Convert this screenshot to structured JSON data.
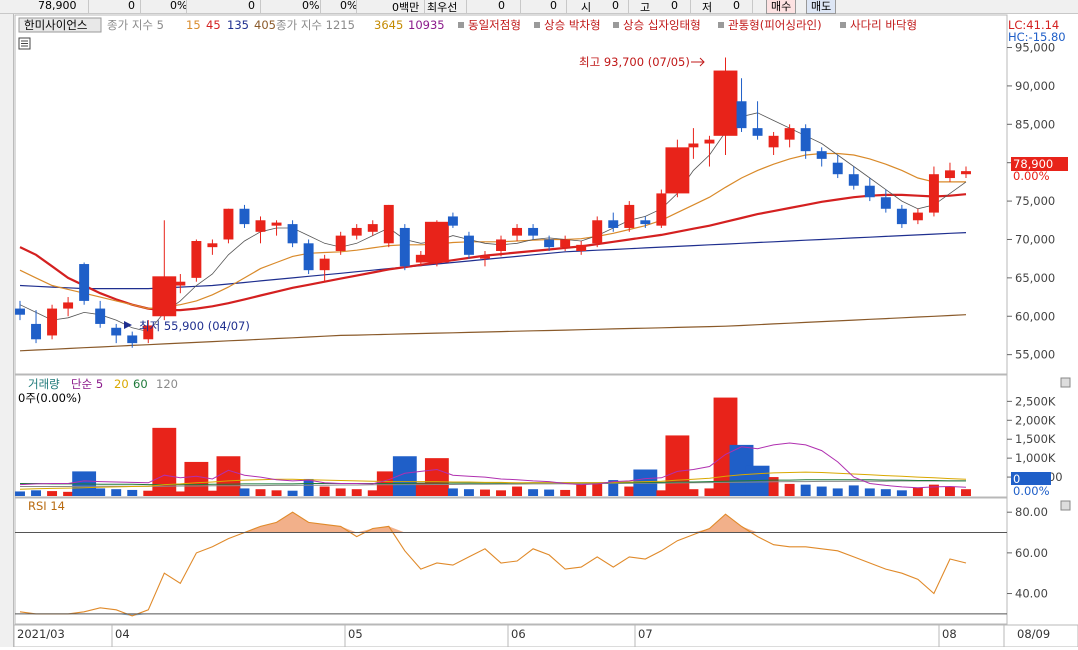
{
  "topbar": {
    "price": "78,900",
    "fields": [
      "0",
      "0%",
      "0",
      "0%",
      "0%",
      "0백만",
      "최우선",
      "0",
      "0",
      "시",
      "0",
      "고",
      "0",
      "저",
      "0"
    ],
    "buy_label": "매수",
    "sell_label": "매도"
  },
  "price_panel": {
    "stock_name": "한미사이언스",
    "ma_label": "종가 지수 5",
    "ma_short": [
      "15",
      "45",
      "135",
      "405"
    ],
    "ma_long_label": "종가 지수 1215",
    "ma_long": [
      "3645",
      "10935"
    ],
    "patterns": [
      "동일저점형",
      "상승 박차형",
      "상승 십자잉태형",
      "관통형(피어싱라인)",
      "사다리 바닥형"
    ],
    "lc": "LC:41.14",
    "hc": "HC:-15.80",
    "high_annotation": "최고 93,700 (07/05)",
    "low_annotation": "최저 55,900 (04/07)",
    "current_price": "78,900",
    "current_change": "0.00%",
    "y_ticks": [
      "95,000",
      "90,000",
      "85,000",
      "80,000",
      "75,000",
      "70,000",
      "65,000",
      "60,000",
      "55,000"
    ]
  },
  "volume_panel": {
    "title": "거래량",
    "ma_label": "단순 5",
    "ma_periods": [
      "20",
      "60",
      "120"
    ],
    "value_label": "0주(0.00%)",
    "y_ticks": [
      "2,500K",
      "2,000K",
      "1,500K",
      "1,000K",
      "500,000"
    ],
    "current_value": "0",
    "current_pct": "0.00%"
  },
  "rsi_panel": {
    "title": "RSI 14",
    "y_ticks": [
      "80.00",
      "60.00",
      "40.00"
    ]
  },
  "x_axis": {
    "labels": [
      "2021/03",
      "04",
      "05",
      "06",
      "07",
      "08",
      "08/09"
    ]
  },
  "colors": {
    "up": "#e8231a",
    "down": "#1f5fc8",
    "ma5": "#555555",
    "ma20": "#d98a2a",
    "ma60": "#d42020",
    "ma120": "#1f2f8f",
    "ma240": "#8a5a2a",
    "rsi": "#e08a2a"
  },
  "chart_data": {
    "type": "candlestick",
    "x_range": [
      "2021/03",
      "08/09"
    ],
    "price_ylim": [
      53000,
      96500
    ],
    "volume_ylim": [
      0,
      2800
    ],
    "volume_unit": "K",
    "rsi_ylim": [
      26,
      86
    ],
    "candles": [
      {
        "o": 61000,
        "h": 62000,
        "l": 59500,
        "c": 60200
      },
      {
        "o": 59000,
        "h": 60800,
        "l": 56500,
        "c": 57000
      },
      {
        "o": 57500,
        "h": 61500,
        "l": 57000,
        "c": 61000
      },
      {
        "o": 61000,
        "h": 62500,
        "l": 60000,
        "c": 61800
      },
      {
        "o": 66800,
        "h": 67000,
        "l": 61500,
        "c": 62000
      },
      {
        "o": 61000,
        "h": 62000,
        "l": 58500,
        "c": 59000
      },
      {
        "o": 58500,
        "h": 59000,
        "l": 56500,
        "c": 57500
      },
      {
        "o": 57500,
        "h": 58000,
        "l": 55900,
        "c": 56500
      },
      {
        "o": 57000,
        "h": 59500,
        "l": 56500,
        "c": 58800
      },
      {
        "o": 60000,
        "h": 72500,
        "l": 59500,
        "c": 65200
      },
      {
        "o": 64000,
        "h": 65500,
        "l": 63000,
        "c": 64500
      },
      {
        "o": 65000,
        "h": 70000,
        "l": 64500,
        "c": 69800
      },
      {
        "o": 69000,
        "h": 70000,
        "l": 68000,
        "c": 69500
      },
      {
        "o": 70000,
        "h": 74000,
        "l": 69500,
        "c": 74000
      },
      {
        "o": 74000,
        "h": 74500,
        "l": 71500,
        "c": 72000
      },
      {
        "o": 71000,
        "h": 73000,
        "l": 69500,
        "c": 72500
      },
      {
        "o": 71800,
        "h": 72500,
        "l": 70500,
        "c": 72200
      },
      {
        "o": 72000,
        "h": 72500,
        "l": 69000,
        "c": 69500
      },
      {
        "o": 69500,
        "h": 70000,
        "l": 65500,
        "c": 66000
      },
      {
        "o": 66000,
        "h": 68000,
        "l": 64500,
        "c": 67500
      },
      {
        "o": 68500,
        "h": 71000,
        "l": 68000,
        "c": 70500
      },
      {
        "o": 70500,
        "h": 72000,
        "l": 70000,
        "c": 71500
      },
      {
        "o": 71000,
        "h": 72500,
        "l": 70500,
        "c": 72000
      },
      {
        "o": 69500,
        "h": 74500,
        "l": 69000,
        "c": 74500
      },
      {
        "o": 71500,
        "h": 72000,
        "l": 66000,
        "c": 66500
      },
      {
        "o": 67000,
        "h": 68500,
        "l": 66500,
        "c": 68000
      },
      {
        "o": 67000,
        "h": 72500,
        "l": 66500,
        "c": 72300
      },
      {
        "o": 73000,
        "h": 73500,
        "l": 71500,
        "c": 71800
      },
      {
        "o": 70500,
        "h": 71000,
        "l": 67500,
        "c": 68000
      },
      {
        "o": 67500,
        "h": 68500,
        "l": 66500,
        "c": 67800
      },
      {
        "o": 68500,
        "h": 70500,
        "l": 67800,
        "c": 70000
      },
      {
        "o": 70500,
        "h": 72000,
        "l": 69800,
        "c": 71500
      },
      {
        "o": 71500,
        "h": 72000,
        "l": 70000,
        "c": 70500
      },
      {
        "o": 70000,
        "h": 70500,
        "l": 68500,
        "c": 69000
      },
      {
        "o": 69000,
        "h": 70500,
        "l": 68500,
        "c": 70000
      },
      {
        "o": 68500,
        "h": 69800,
        "l": 68000,
        "c": 69300
      },
      {
        "o": 69500,
        "h": 73000,
        "l": 69000,
        "c": 72500
      },
      {
        "o": 72500,
        "h": 73500,
        "l": 71000,
        "c": 71500
      },
      {
        "o": 71500,
        "h": 75000,
        "l": 71000,
        "c": 74500
      },
      {
        "o": 72500,
        "h": 73000,
        "l": 71500,
        "c": 72000
      },
      {
        "o": 71800,
        "h": 76500,
        "l": 71500,
        "c": 76000
      },
      {
        "o": 76000,
        "h": 83000,
        "l": 75500,
        "c": 82000
      },
      {
        "o": 82000,
        "h": 84500,
        "l": 80500,
        "c": 82500
      },
      {
        "o": 82500,
        "h": 83500,
        "l": 79500,
        "c": 83000
      },
      {
        "o": 83500,
        "h": 93700,
        "l": 81000,
        "c": 92000
      },
      {
        "o": 88000,
        "h": 91000,
        "l": 84000,
        "c": 84500
      },
      {
        "o": 84500,
        "h": 88000,
        "l": 83000,
        "c": 83500
      },
      {
        "o": 82000,
        "h": 84000,
        "l": 81000,
        "c": 83500
      },
      {
        "o": 83000,
        "h": 85000,
        "l": 82000,
        "c": 84500
      },
      {
        "o": 84500,
        "h": 85000,
        "l": 80500,
        "c": 81500
      },
      {
        "o": 81500,
        "h": 82000,
        "l": 79500,
        "c": 80500
      },
      {
        "o": 80000,
        "h": 81000,
        "l": 78000,
        "c": 78500
      },
      {
        "o": 78500,
        "h": 79500,
        "l": 76500,
        "c": 77000
      },
      {
        "o": 77000,
        "h": 78000,
        "l": 75000,
        "c": 75500
      },
      {
        "o": 75500,
        "h": 76500,
        "l": 73500,
        "c": 74000
      },
      {
        "o": 74000,
        "h": 74500,
        "l": 71500,
        "c": 72000
      },
      {
        "o": 72500,
        "h": 74000,
        "l": 72000,
        "c": 73500
      },
      {
        "o": 73500,
        "h": 79500,
        "l": 73000,
        "c": 78500
      },
      {
        "o": 78000,
        "h": 80000,
        "l": 77500,
        "c": 79000
      },
      {
        "o": 78500,
        "h": 79500,
        "l": 78000,
        "c": 78900
      }
    ],
    "ma5": [
      61500,
      60500,
      59500,
      59800,
      60500,
      60200,
      59500,
      58500,
      58000,
      60500,
      62000,
      64000,
      65500,
      68000,
      69800,
      71000,
      71500,
      71500,
      70500,
      69500,
      69000,
      69500,
      70500,
      71500,
      70000,
      69500,
      69800,
      70500,
      70000,
      69500,
      69300,
      69500,
      70000,
      70200,
      70000,
      69800,
      70500,
      71500,
      72500,
      73000,
      74000,
      76000,
      79000,
      81000,
      84000,
      86000,
      86500,
      85500,
      84500,
      83500,
      82500,
      81000,
      79500,
      78000,
      76500,
      75000,
      74000,
      74500,
      76000,
      77500
    ],
    "ma20": [
      66000,
      65000,
      64000,
      63500,
      63000,
      62500,
      62000,
      61500,
      61000,
      61200,
      61500,
      62000,
      62800,
      63800,
      65000,
      66200,
      67000,
      67800,
      68200,
      68300,
      68400,
      68600,
      68900,
      69200,
      69300,
      69300,
      69400,
      69600,
      69700,
      69700,
      69700,
      69800,
      69900,
      70000,
      70000,
      70100,
      70400,
      70800,
      71300,
      71800,
      72500,
      73500,
      74500,
      75500,
      76800,
      78000,
      79000,
      79800,
      80500,
      81000,
      81200,
      81200,
      81000,
      80500,
      79800,
      79000,
      78000,
      77500,
      77500,
      77500
    ],
    "ma60": [
      69000,
      68000,
      66500,
      65000,
      64000,
      63000,
      62200,
      61500,
      61000,
      60800,
      60800,
      61000,
      61300,
      61700,
      62200,
      62700,
      63200,
      63700,
      64100,
      64500,
      64900,
      65300,
      65700,
      66100,
      66400,
      66700,
      67000,
      67300,
      67600,
      67900,
      68100,
      68300,
      68500,
      68700,
      68900,
      69100,
      69400,
      69700,
      70000,
      70300,
      70600,
      71000,
      71400,
      71800,
      72300,
      72800,
      73300,
      73700,
      74100,
      74500,
      74900,
      75200,
      75500,
      75700,
      75800,
      75800,
      75700,
      75600,
      75700,
      75900
    ],
    "ma120": [
      64000,
      63900,
      63800,
      63700,
      63600,
      63600,
      63600,
      63600,
      63600,
      63700,
      63800,
      63900,
      64000,
      64200,
      64400,
      64600,
      64800,
      65000,
      65200,
      65400,
      65600,
      65800,
      66000,
      66200,
      66400,
      66600,
      66800,
      67000,
      67200,
      67400,
      67600,
      67800,
      68000,
      68200,
      68400,
      68500,
      68600,
      68700,
      68800,
      68900,
      69000,
      69100,
      69200,
      69300,
      69400,
      69500,
      69600,
      69700,
      69800,
      69900,
      70000,
      70100,
      70200,
      70300,
      70400,
      70500,
      70600,
      70700,
      70800,
      70900
    ],
    "ma240": [
      55500,
      55600,
      55700,
      55800,
      55900,
      56000,
      56100,
      56200,
      56300,
      56400,
      56500,
      56600,
      56700,
      56800,
      56900,
      57000,
      57100,
      57200,
      57300,
      57400,
      57500,
      57550,
      57600,
      57650,
      57700,
      57750,
      57800,
      57850,
      57900,
      57950,
      58000,
      58050,
      58100,
      58150,
      58200,
      58250,
      58300,
      58350,
      58400,
      58450,
      58500,
      58550,
      58600,
      58650,
      58700,
      58800,
      58900,
      59000,
      59100,
      59200,
      59300,
      59400,
      59500,
      59600,
      59700,
      59800,
      59900,
      60000,
      60100,
      60200
    ],
    "volume": [
      120,
      150,
      130,
      110,
      650,
      200,
      180,
      160,
      140,
      1800,
      120,
      900,
      140,
      1050,
      200,
      180,
      150,
      140,
      450,
      250,
      200,
      180,
      150,
      650,
      1050,
      350,
      1000,
      200,
      180,
      170,
      150,
      250,
      180,
      170,
      160,
      300,
      350,
      420,
      250,
      700,
      150,
      1600,
      180,
      200,
      2600,
      1350,
      800,
      500,
      320,
      300,
      250,
      200,
      280,
      200,
      180,
      150,
      220,
      300,
      250,
      180
    ],
    "volume_ma5": [
      300,
      320,
      330,
      330,
      400,
      380,
      370,
      360,
      350,
      550,
      480,
      520,
      450,
      680,
      550,
      500,
      430,
      400,
      420,
      350,
      330,
      330,
      320,
      430,
      600,
      650,
      700,
      550,
      520,
      500,
      450,
      430,
      400,
      380,
      330,
      300,
      320,
      380,
      400,
      460,
      480,
      650,
      700,
      780,
      1100,
      1300,
      1250,
      1350,
      1400,
      1350,
      1200,
      900,
      500,
      330,
      280,
      240,
      220,
      240,
      250,
      230
    ],
    "volume_ma20": [
      180,
      190,
      200,
      210,
      220,
      230,
      240,
      250,
      260,
      300,
      320,
      350,
      370,
      400,
      420,
      430,
      440,
      440,
      430,
      420,
      410,
      400,
      390,
      380,
      380,
      380,
      380,
      370,
      370,
      360,
      360,
      350,
      350,
      350,
      350,
      350,
      350,
      360,
      370,
      380,
      390,
      420,
      440,
      470,
      520,
      560,
      590,
      610,
      620,
      630,
      620,
      600,
      580,
      560,
      540,
      520,
      500,
      480,
      460,
      440
    ],
    "volume_ma60": [
      330,
      330,
      320,
      320,
      320,
      310,
      310,
      310,
      300,
      300,
      300,
      300,
      310,
      310,
      320,
      320,
      320,
      320,
      330,
      330,
      330,
      330,
      330,
      330,
      330,
      340,
      340,
      340,
      340,
      340,
      340,
      340,
      350,
      350,
      350,
      350,
      350,
      350,
      350,
      360,
      360,
      370,
      370,
      380,
      390,
      400,
      410,
      420,
      420,
      430,
      430,
      430,
      430,
      430,
      420,
      420,
      410,
      410,
      400,
      400
    ],
    "volume_ma120": [
      250,
      250,
      250,
      250,
      255,
      255,
      255,
      255,
      260,
      260,
      265,
      265,
      270,
      270,
      275,
      275,
      280,
      280,
      285,
      285,
      290,
      290,
      295,
      295,
      300,
      300,
      305,
      305,
      310,
      310,
      315,
      315,
      320,
      320,
      325,
      325,
      330,
      330,
      335,
      335,
      340,
      345,
      350,
      355,
      360,
      365,
      370,
      375,
      380,
      380,
      385,
      385,
      390,
      390,
      390,
      395,
      395,
      395,
      400,
      400
    ],
    "rsi": [
      31,
      30,
      30,
      30,
      31,
      33,
      32,
      29,
      32,
      50,
      45,
      60,
      63,
      67,
      70,
      73,
      75,
      80,
      75,
      74,
      73,
      68,
      72,
      73,
      61,
      52,
      55,
      54,
      58,
      62,
      55,
      56,
      62,
      59,
      52,
      53,
      58,
      53,
      58,
      57,
      61,
      66,
      69,
      72,
      79,
      73,
      68,
      64,
      63,
      63,
      62,
      61,
      58,
      55,
      52,
      50,
      47,
      40,
      57,
      55
    ]
  }
}
